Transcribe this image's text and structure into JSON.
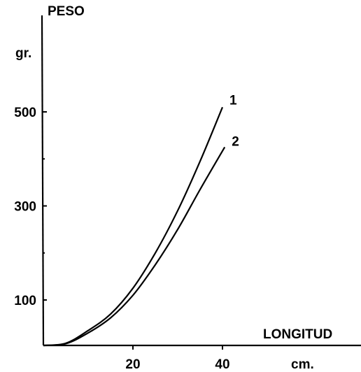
{
  "chart_data": {
    "type": "line",
    "ylabel": "PESO",
    "yunit": "gr.",
    "xlabel": "LONGITUD",
    "xunit": "cm.",
    "xlim": [
      0,
      70
    ],
    "ylim": [
      0,
      700
    ],
    "xticks": [
      20,
      40
    ],
    "yticks": [
      100,
      300,
      500
    ],
    "series": [
      {
        "name": "1",
        "x": [
          0,
          5,
          10,
          15,
          20,
          25,
          30,
          35,
          40
        ],
        "y": [
          0,
          8,
          35,
          70,
          125,
          200,
          290,
          395,
          510
        ]
      },
      {
        "name": "2",
        "x": [
          0,
          5,
          10,
          15,
          20,
          25,
          30,
          35,
          40.5
        ],
        "y": [
          0,
          7,
          30,
          62,
          110,
          175,
          250,
          335,
          425
        ]
      }
    ]
  }
}
